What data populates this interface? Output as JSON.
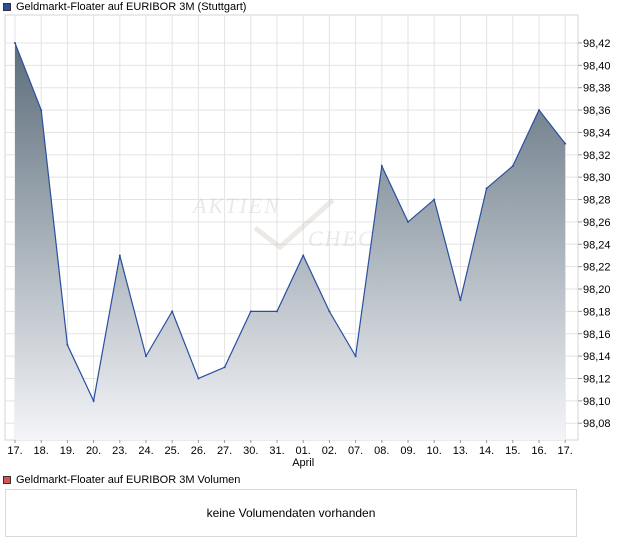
{
  "colors": {
    "price_line": "#2a4f9e",
    "area_top": "#5c6d7b",
    "area_bottom": "#f4f5f8",
    "grid": "#e3e3e3",
    "volume_swatch": "#d9534f"
  },
  "legend": {
    "price_label": "Geldmarkt-Floater auf EURIBOR 3M (Stuttgart)",
    "volume_label": "Geldmarkt-Floater auf EURIBOR 3M Volumen"
  },
  "volume": {
    "message": "keine Volumendaten vorhanden"
  },
  "watermark": "AKTIEN CHECK",
  "chart_data": {
    "type": "area",
    "x": [
      "17.",
      "18.",
      "19.",
      "20.",
      "23.",
      "24.",
      "25.",
      "26.",
      "27.",
      "30.",
      "31.",
      "01.",
      "02.",
      "07.",
      "08.",
      "09.",
      "10.",
      "13.",
      "14.",
      "15.",
      "16.",
      "17."
    ],
    "month_labels": [
      {
        "index": 11,
        "label": "April"
      }
    ],
    "values": [
      98.42,
      98.36,
      98.15,
      98.1,
      98.23,
      98.14,
      98.18,
      98.12,
      98.13,
      98.18,
      98.18,
      98.23,
      98.18,
      98.14,
      98.31,
      98.26,
      98.28,
      98.19,
      98.29,
      98.31,
      98.36,
      98.33
    ],
    "y_ticks": [
      "98,08",
      "98,10",
      "98,12",
      "98,14",
      "98,16",
      "98,18",
      "98,20",
      "98,22",
      "98,24",
      "98,26",
      "98,28",
      "98,30",
      "98,32",
      "98,34",
      "98,36",
      "98,38",
      "98,40",
      "98,42"
    ],
    "y_tick_values": [
      98.08,
      98.1,
      98.12,
      98.14,
      98.16,
      98.18,
      98.2,
      98.22,
      98.24,
      98.26,
      98.28,
      98.3,
      98.32,
      98.34,
      98.36,
      98.38,
      98.4,
      98.42
    ],
    "ylim": [
      98.065,
      98.445
    ],
    "grid": true
  }
}
